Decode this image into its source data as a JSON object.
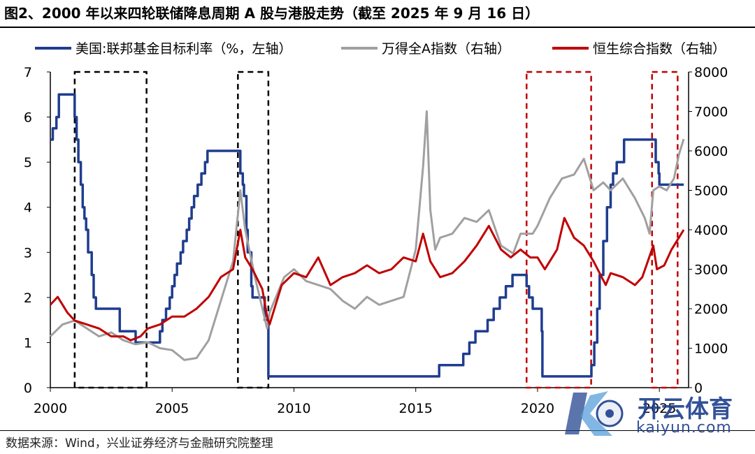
{
  "title": "图2、2000 年以来四轮联储降息周期 A 股与港股走势（截至 2025 年 9 月 16 日）",
  "source": "数据来源：Wind，兴业证券经济与金融研究院整理",
  "watermark": {
    "brand": "开云体育",
    "domain": "kaiyun.com"
  },
  "colors": {
    "fed": "#1f3d8f",
    "wind": "#a0a0a0",
    "hsci": "#c00000",
    "box_black": "#000000",
    "box_red": "#c00000"
  },
  "chart_data": {
    "type": "line",
    "title": "图2、2000 年以来四轮联储降息周期 A 股与港股走势（截至 2025 年 9 月 16 日）",
    "legend_position": "top",
    "x_ticks": [
      "2000",
      "2005",
      "2010",
      "2015",
      "2020",
      "2025"
    ],
    "xlim": [
      2000,
      2026.2
    ],
    "ylim_left": [
      0,
      7
    ],
    "ylim_right": [
      0,
      8000
    ],
    "y_ticks_left": [
      "0",
      "1",
      "2",
      "3",
      "4",
      "5",
      "6",
      "7"
    ],
    "y_ticks_right": [
      "0",
      "1000",
      "2000",
      "3000",
      "4000",
      "5000",
      "6000",
      "7000",
      "8000"
    ],
    "series": [
      {
        "name": "美国:联邦基金目标利率（%，左轴）",
        "axis": "left",
        "color": "#1f3d8f",
        "step": true,
        "x": [
          2000.0,
          2000.1,
          2000.25,
          2000.35,
          2000.99,
          2001.0,
          2001.08,
          2001.15,
          2001.25,
          2001.33,
          2001.4,
          2001.47,
          2001.55,
          2001.7,
          2001.78,
          2001.87,
          2001.95,
          2002.85,
          2003.5,
          2004.5,
          2004.6,
          2004.75,
          2004.9,
          2005.0,
          2005.1,
          2005.2,
          2005.35,
          2005.45,
          2005.6,
          2005.7,
          2005.8,
          2005.9,
          2006.05,
          2006.2,
          2006.35,
          2006.45,
          2007.7,
          2007.8,
          2007.9,
          2007.95,
          2008.05,
          2008.1,
          2008.25,
          2008.3,
          2008.8,
          2008.95,
          2015.96,
          2016.95,
          2017.2,
          2017.45,
          2017.95,
          2018.2,
          2018.45,
          2018.7,
          2018.97,
          2019.55,
          2019.65,
          2019.8,
          2020.17,
          2020.2,
          2022.21,
          2022.33,
          2022.45,
          2022.55,
          2022.7,
          2022.85,
          2023.0,
          2023.1,
          2023.25,
          2023.55,
          2024.7,
          2024.85,
          2024.97,
          2025.0,
          2025.7,
          2026.0
        ],
        "values": [
          5.5,
          5.75,
          6.0,
          6.5,
          6.5,
          6.0,
          5.5,
          5.0,
          4.5,
          4.0,
          3.75,
          3.5,
          3.0,
          2.5,
          2.0,
          1.75,
          1.75,
          1.25,
          1.0,
          1.25,
          1.5,
          1.75,
          2.0,
          2.25,
          2.5,
          2.75,
          3.0,
          3.25,
          3.5,
          3.75,
          4.0,
          4.25,
          4.5,
          4.75,
          5.0,
          5.25,
          5.25,
          4.75,
          4.5,
          4.25,
          3.5,
          3.0,
          2.25,
          2.0,
          1.5,
          0.25,
          0.5,
          0.75,
          1.0,
          1.25,
          1.5,
          1.75,
          2.0,
          2.25,
          2.5,
          2.25,
          2.0,
          1.75,
          1.25,
          0.25,
          0.5,
          1.0,
          1.75,
          2.5,
          3.25,
          4.0,
          4.5,
          4.75,
          5.0,
          5.5,
          5.5,
          5.0,
          4.75,
          4.5,
          4.5,
          4.5
        ]
      },
      {
        "name": "万得全A指数（右轴）",
        "axis": "right",
        "color": "#a0a0a0",
        "x": [
          2000.0,
          2000.5,
          2001.0,
          2001.5,
          2002.0,
          2002.5,
          2003.0,
          2003.5,
          2004.0,
          2004.5,
          2005.0,
          2005.5,
          2006.0,
          2006.5,
          2007.0,
          2007.5,
          2007.8,
          2008.0,
          2008.4,
          2008.9,
          2009.0,
          2009.6,
          2010.0,
          2010.5,
          2011.0,
          2011.5,
          2012.0,
          2012.5,
          2013.0,
          2013.5,
          2014.0,
          2014.5,
          2015.0,
          2015.3,
          2015.45,
          2015.6,
          2015.8,
          2016.0,
          2016.5,
          2017.0,
          2017.5,
          2018.0,
          2018.5,
          2019.0,
          2019.3,
          2019.8,
          2020.0,
          2020.5,
          2021.0,
          2021.5,
          2021.9,
          2022.3,
          2022.7,
          2023.0,
          2023.5,
          2024.0,
          2024.4,
          2024.6,
          2024.75,
          2025.0,
          2025.3,
          2025.6,
          2025.8,
          2026.0
        ],
        "values": [
          1300,
          1600,
          1700,
          1500,
          1300,
          1400,
          1200,
          1100,
          1150,
          1000,
          950,
          700,
          750,
          1200,
          2200,
          3200,
          5000,
          4000,
          2800,
          1500,
          1900,
          2800,
          3000,
          2700,
          2600,
          2500,
          2200,
          2000,
          2300,
          2100,
          2200,
          2300,
          3500,
          5600,
          7000,
          4500,
          3500,
          3800,
          3900,
          4300,
          4200,
          4500,
          3600,
          3400,
          3900,
          3900,
          4100,
          4800,
          5300,
          5400,
          5800,
          5000,
          5200,
          5000,
          5300,
          4800,
          4300,
          3900,
          5000,
          5100,
          5000,
          5300,
          5900,
          6300
        ]
      },
      {
        "name": "恒生综合指数（右轴）",
        "axis": "right",
        "color": "#c00000",
        "x": [
          2000.0,
          2000.3,
          2000.7,
          2001.0,
          2001.5,
          2002.0,
          2002.5,
          2003.0,
          2003.3,
          2003.7,
          2004.0,
          2004.5,
          2005.0,
          2005.5,
          2006.0,
          2006.5,
          2007.0,
          2007.5,
          2007.8,
          2008.0,
          2008.3,
          2008.7,
          2008.9,
          2009.0,
          2009.5,
          2010.0,
          2010.5,
          2011.0,
          2011.5,
          2012.0,
          2012.5,
          2013.0,
          2013.5,
          2014.0,
          2014.5,
          2015.0,
          2015.3,
          2015.6,
          2016.0,
          2016.5,
          2017.0,
          2017.5,
          2018.0,
          2018.5,
          2018.9,
          2019.3,
          2019.7,
          2020.0,
          2020.3,
          2020.8,
          2021.1,
          2021.5,
          2021.9,
          2022.3,
          2022.8,
          2023.0,
          2023.5,
          2024.0,
          2024.3,
          2024.75,
          2024.9,
          2025.2,
          2025.5,
          2025.8,
          2026.0
        ],
        "values": [
          2100,
          2300,
          1900,
          1700,
          1600,
          1500,
          1300,
          1300,
          1200,
          1300,
          1500,
          1600,
          1800,
          1800,
          2000,
          2300,
          2800,
          3000,
          4000,
          3300,
          3000,
          2500,
          1800,
          1600,
          2600,
          2900,
          2800,
          3300,
          2600,
          2800,
          2900,
          3100,
          2900,
          3000,
          3300,
          3200,
          3900,
          3200,
          2800,
          2900,
          3200,
          3600,
          4100,
          3500,
          3300,
          3500,
          3300,
          3300,
          3000,
          3500,
          4300,
          3800,
          3600,
          3200,
          2600,
          2900,
          2800,
          2600,
          2800,
          3600,
          3000,
          3100,
          3500,
          3800,
          4000
        ]
      }
    ],
    "boxes": [
      {
        "x": [
          2001.0,
          2003.95
        ],
        "style": "black-dashed"
      },
      {
        "x": [
          2007.7,
          2008.95
        ],
        "style": "black-dashed"
      },
      {
        "x": [
          2019.55,
          2022.2
        ],
        "style": "red-dashed"
      },
      {
        "x": [
          2024.7,
          2025.75
        ],
        "style": "red-dashed"
      }
    ]
  }
}
